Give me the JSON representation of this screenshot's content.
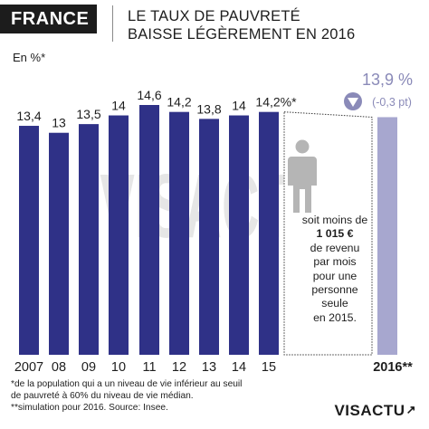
{
  "header": {
    "tag": "FRANCE",
    "title_line1": "LE TAUX DE PAUVRETÉ",
    "title_line2": "BAISSE LÉGÈREMENT EN 2016"
  },
  "unit_label": "En %*",
  "watermark": "VISACTU",
  "highlight": {
    "value_label": "13,9 %",
    "change_label": "(-0,3 pt)",
    "icon": "down-triangle-icon"
  },
  "note": {
    "line1": "soit moins de",
    "amount": "1 015 €",
    "line3": "de revenu",
    "line4": "par mois",
    "line5": "pour une",
    "line6": "personne",
    "line7": "seule",
    "line8": "en 2015."
  },
  "footnotes": {
    "line1": "*de la population qui a un niveau de vie inférieur au seuil",
    "line2": "de pauvreté à 60% du niveau de vie médian.",
    "line3": "**simulation pour 2016. Source: Insee."
  },
  "brand": {
    "name": "VISACTU",
    "mark": "↗"
  },
  "colors": {
    "bar": "#2f3187",
    "bar_projection": "#a7a7cf",
    "highlight_text": "#8a8ab8",
    "triangle": "#8a8ab8",
    "person": "#b5b5b5",
    "watermark": "#d2d2d2",
    "header_tag": "#1c1c1c"
  },
  "chart_data": {
    "type": "bar",
    "categories": [
      "2007",
      "08",
      "09",
      "10",
      "11",
      "12",
      "13",
      "14",
      "15",
      "2016**"
    ],
    "values": [
      13.4,
      13,
      13.5,
      14,
      14.6,
      14.2,
      13.8,
      14,
      14.2,
      13.9
    ],
    "data_labels": [
      "13,4",
      "13",
      "13,5",
      "14",
      "14,6",
      "14,2",
      "13,8",
      "14",
      "14,2%*",
      ""
    ],
    "projected_index": 9,
    "ylim": [
      0,
      14.6
    ],
    "title": "LE TAUX DE PAUVRETÉ BAISSE LÉGÈREMENT EN 2016",
    "ylabel": "En %*",
    "xlabel": "",
    "grid": false,
    "legend": "none"
  }
}
